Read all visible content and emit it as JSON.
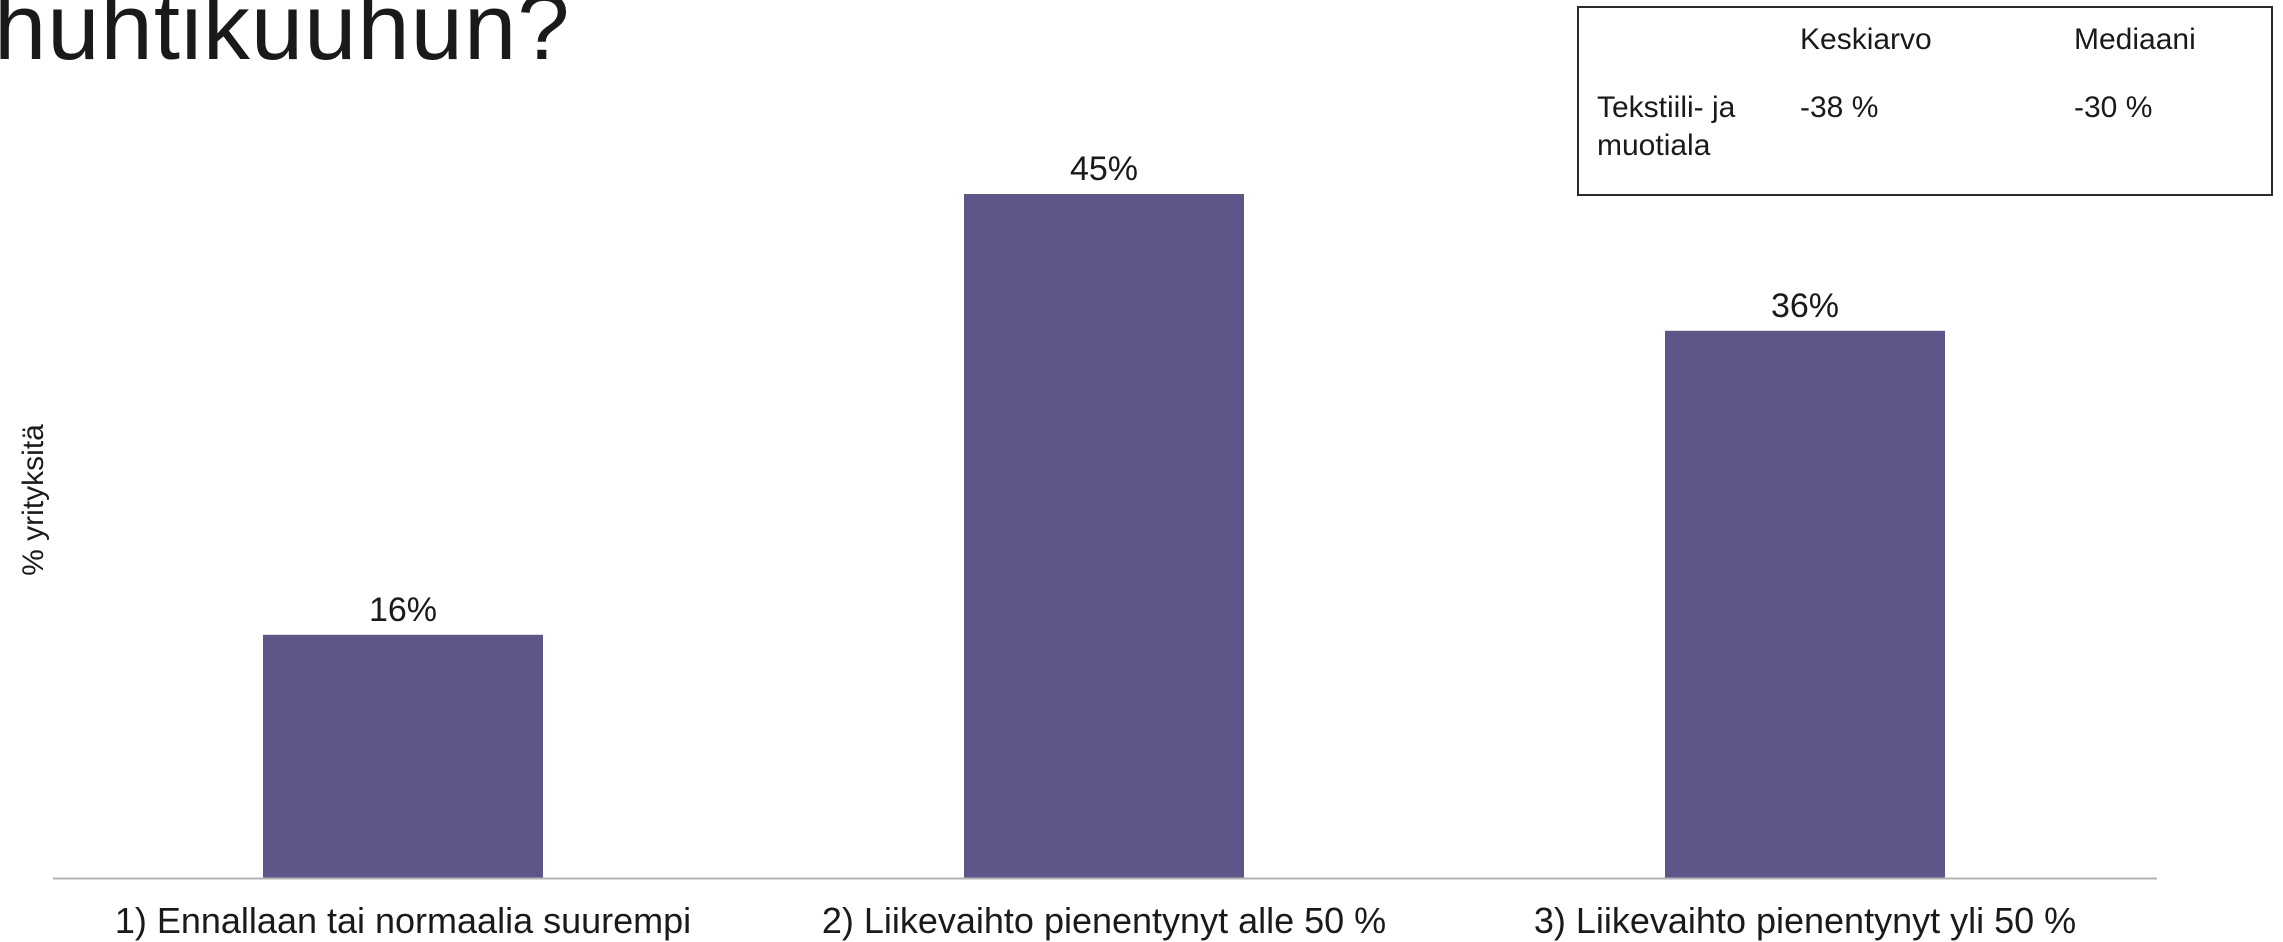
{
  "title": "huhtikuuhun?",
  "ylabel": "% yrityksitä",
  "stats_table": {
    "headers": [
      "Keskiarvo",
      "Mediaani"
    ],
    "rows": [
      {
        "label_line1": "Tekstiili- ja",
        "label_line2": "muotiala",
        "mean": "-38 %",
        "median": "-30 %"
      }
    ]
  },
  "chart_data": {
    "type": "bar",
    "categories": [
      "1) Ennallaan tai normaalia suurempi",
      "2) Liikevaihto pienentynyt alle 50 %",
      "3) Liikevaihto pienentynyt yli 50 %"
    ],
    "values": [
      16,
      45,
      36
    ],
    "data_labels": [
      "16%",
      "45%",
      "36%"
    ],
    "ylabel": "% yrityksitä",
    "ylim": [
      0,
      50
    ],
    "bar_color": "#5e5688",
    "axis_color": "#b3b3b3",
    "grid": false,
    "legend": "none"
  }
}
